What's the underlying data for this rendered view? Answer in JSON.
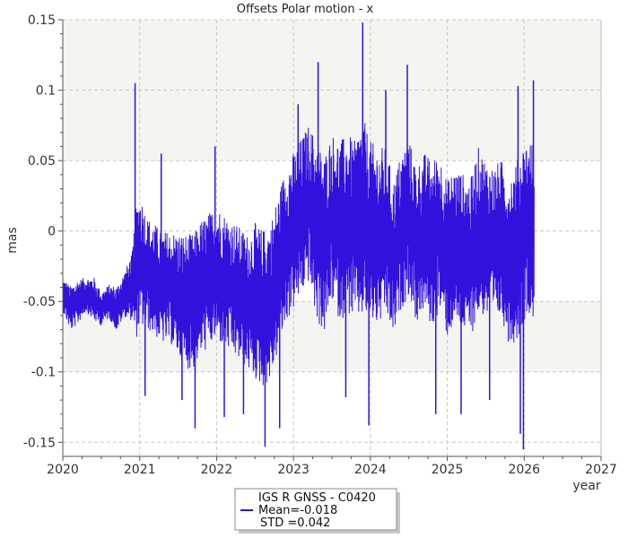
{
  "chart_data": {
    "type": "line",
    "title": "Offsets Polar motion - x",
    "xlabel": "year",
    "ylabel": "mas",
    "xlim": [
      2020,
      2027
    ],
    "ylim": [
      -0.16,
      0.15
    ],
    "x_ticks": [
      "2020",
      "2021",
      "2022",
      "2023",
      "2024",
      "2025",
      "2026",
      "2027"
    ],
    "y_ticks": [
      "0.15",
      "0.1",
      "0.05",
      "0",
      "-0.05",
      "-0.1",
      "-0.15"
    ],
    "y_tick_values": [
      0.15,
      0.1,
      0.05,
      0,
      -0.05,
      -0.1,
      -0.15
    ],
    "grid": true,
    "background_bands": [
      [
        0.05,
        0.1
      ],
      [
        -0.1,
        -0.05
      ]
    ],
    "legend_position": "bottom-center",
    "series": [
      {
        "name": "IGS R GNSS - C0420",
        "color": "#3311dd",
        "mean_label": "Mean=-0.018",
        "std_label": "STD =0.042",
        "x": [
          2020.0,
          2020.1,
          2020.2,
          2020.3,
          2020.4,
          2020.5,
          2020.6,
          2020.7,
          2020.8,
          2020.9,
          2020.95,
          2021.0,
          2021.1,
          2021.2,
          2021.3,
          2021.4,
          2021.5,
          2021.6,
          2021.7,
          2021.8,
          2021.9,
          2022.0,
          2022.1,
          2022.2,
          2022.3,
          2022.4,
          2022.5,
          2022.6,
          2022.7,
          2022.8,
          2022.9,
          2023.0,
          2023.1,
          2023.2,
          2023.3,
          2023.4,
          2023.5,
          2023.6,
          2023.7,
          2023.8,
          2023.9,
          2024.0,
          2024.1,
          2024.2,
          2024.3,
          2024.4,
          2024.5,
          2024.6,
          2024.7,
          2024.8,
          2024.9,
          2025.0,
          2025.1,
          2025.2,
          2025.3,
          2025.4,
          2025.5,
          2025.6,
          2025.7,
          2025.8,
          2025.9,
          2026.0,
          2026.1,
          2026.13
        ],
        "y_mid": [
          -0.045,
          -0.055,
          -0.05,
          -0.045,
          -0.048,
          -0.055,
          -0.05,
          -0.055,
          -0.045,
          -0.04,
          -0.03,
          -0.02,
          -0.03,
          -0.035,
          -0.04,
          -0.04,
          -0.045,
          -0.05,
          -0.05,
          -0.04,
          -0.035,
          -0.03,
          -0.035,
          -0.04,
          -0.045,
          -0.05,
          -0.05,
          -0.055,
          -0.05,
          -0.03,
          -0.01,
          0.0,
          0.01,
          0.02,
          0.0,
          -0.01,
          0.01,
          0.0,
          0.005,
          0.0,
          0.01,
          0.0,
          -0.005,
          0.0,
          -0.02,
          0.0,
          0.01,
          -0.01,
          0.0,
          -0.01,
          0.0,
          -0.02,
          -0.01,
          -0.015,
          -0.02,
          0.0,
          -0.005,
          -0.01,
          -0.005,
          -0.02,
          -0.015,
          0.0,
          0.005,
          -0.02
        ],
        "y_amp": [
          0.015,
          0.02,
          0.02,
          0.015,
          0.02,
          0.015,
          0.015,
          0.02,
          0.02,
          0.03,
          0.06,
          0.06,
          0.05,
          0.05,
          0.05,
          0.05,
          0.055,
          0.06,
          0.06,
          0.06,
          0.06,
          0.06,
          0.06,
          0.06,
          0.06,
          0.06,
          0.07,
          0.07,
          0.07,
          0.07,
          0.07,
          0.07,
          0.07,
          0.07,
          0.08,
          0.08,
          0.075,
          0.08,
          0.08,
          0.08,
          0.09,
          0.08,
          0.08,
          0.075,
          0.07,
          0.07,
          0.07,
          0.07,
          0.07,
          0.075,
          0.07,
          0.07,
          0.07,
          0.07,
          0.07,
          0.075,
          0.07,
          0.07,
          0.07,
          0.075,
          0.08,
          0.08,
          0.075,
          0.07
        ],
        "spikes": [
          [
            2020.94,
            0.105
          ],
          [
            2021.07,
            -0.117
          ],
          [
            2021.28,
            0.055
          ],
          [
            2021.55,
            -0.12
          ],
          [
            2021.72,
            -0.14
          ],
          [
            2021.98,
            0.06
          ],
          [
            2022.1,
            -0.132
          ],
          [
            2022.35,
            -0.13
          ],
          [
            2022.63,
            -0.153
          ],
          [
            2022.82,
            -0.14
          ],
          [
            2023.06,
            0.09
          ],
          [
            2023.32,
            0.12
          ],
          [
            2023.68,
            -0.118
          ],
          [
            2023.9,
            0.148
          ],
          [
            2023.98,
            -0.138
          ],
          [
            2024.2,
            0.1
          ],
          [
            2024.48,
            0.118
          ],
          [
            2024.85,
            -0.13
          ],
          [
            2025.18,
            -0.13
          ],
          [
            2025.55,
            -0.12
          ],
          [
            2025.92,
            0.103
          ],
          [
            2025.95,
            -0.144
          ],
          [
            2025.99,
            -0.155
          ],
          [
            2026.12,
            0.107
          ]
        ]
      }
    ]
  }
}
